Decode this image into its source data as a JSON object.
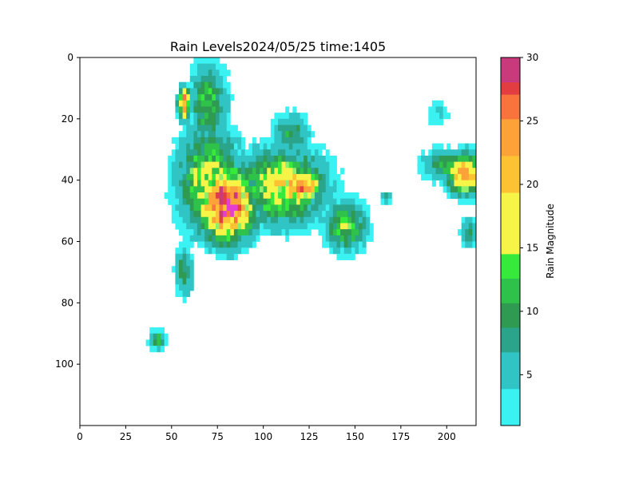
{
  "chart_data": {
    "type": "heatmap",
    "title": "Rain Levels2024/05/25 time:1405",
    "colorbar_label": "Rain Magnitude",
    "x_range": [
      0,
      216
    ],
    "y_range": [
      0,
      120
    ],
    "y_inverted": true,
    "x_ticks": [
      0,
      25,
      50,
      75,
      100,
      125,
      150,
      175,
      200
    ],
    "y_ticks": [
      0,
      20,
      40,
      60,
      80,
      100
    ],
    "x_tick_labels": [
      "0",
      "25",
      "50",
      "75",
      "100",
      "125",
      "150",
      "175",
      "200"
    ],
    "y_tick_labels": [
      "0",
      "20",
      "40",
      "60",
      "80",
      "100"
    ],
    "colorbar_ticks": [
      5,
      10,
      15,
      20,
      25,
      30
    ],
    "colorbar_tick_labels": [
      "5",
      "10",
      "15",
      "20",
      "25",
      "30"
    ],
    "value_range": [
      1,
      30
    ],
    "grid": false,
    "colormap_stops": [
      {
        "v": 1,
        "color": "#3af2f2"
      },
      {
        "v": 4,
        "color": "#30c4c4"
      },
      {
        "v": 7,
        "color": "#2aa48a"
      },
      {
        "v": 9,
        "color": "#2e9a52"
      },
      {
        "v": 11,
        "color": "#2ec24a"
      },
      {
        "v": 13,
        "color": "#36ea3c"
      },
      {
        "v": 14.5,
        "color": "#8cf06a"
      },
      {
        "v": 15,
        "color": "#f6f446"
      },
      {
        "v": 19,
        "color": "#fdc234"
      },
      {
        "v": 22,
        "color": "#fca238"
      },
      {
        "v": 25,
        "color": "#f8743c"
      },
      {
        "v": 27,
        "color": "#e23e42"
      },
      {
        "v": 28.5,
        "color": "#c93a7c"
      },
      {
        "v": 30,
        "color": "#e43ed2"
      }
    ],
    "regions": [
      {
        "name": "main-storm-core",
        "cx": 80,
        "cy": 48,
        "rx": 18,
        "ry": 14,
        "peak": 29
      },
      {
        "name": "storm-west-arm",
        "cx": 70,
        "cy": 40,
        "rx": 20,
        "ry": 20,
        "peak": 16
      },
      {
        "name": "central-band",
        "cx": 110,
        "cy": 42,
        "rx": 28,
        "ry": 14,
        "peak": 18
      },
      {
        "name": "band-core",
        "cx": 120,
        "cy": 42,
        "rx": 14,
        "ry": 7,
        "peak": 24
      },
      {
        "name": "east-extension",
        "cx": 145,
        "cy": 55,
        "rx": 14,
        "ry": 10,
        "peak": 13
      },
      {
        "name": "north-arm",
        "cx": 70,
        "cy": 15,
        "rx": 12,
        "ry": 16,
        "peak": 12
      },
      {
        "name": "north-west-cell",
        "cx": 57,
        "cy": 15,
        "rx": 4,
        "ry": 6,
        "peak": 24
      },
      {
        "name": "north-east-band",
        "cx": 115,
        "cy": 25,
        "rx": 12,
        "ry": 8,
        "peak": 10
      },
      {
        "name": "south-tail",
        "cx": 57,
        "cy": 70,
        "rx": 6,
        "ry": 10,
        "peak": 10
      },
      {
        "name": "south-west-cell",
        "cx": 42,
        "cy": 92,
        "rx": 5,
        "ry": 4,
        "peak": 11
      },
      {
        "name": "right-edge-cell",
        "cx": 210,
        "cy": 38,
        "rx": 12,
        "ry": 8,
        "peak": 22
      },
      {
        "name": "right-edge-band",
        "cx": 198,
        "cy": 35,
        "rx": 14,
        "ry": 6,
        "peak": 11
      },
      {
        "name": "right-lower-cell",
        "cx": 212,
        "cy": 57,
        "rx": 5,
        "ry": 6,
        "peak": 9
      },
      {
        "name": "mid-east-patch",
        "cx": 167,
        "cy": 46,
        "rx": 3,
        "ry": 3,
        "peak": 8
      },
      {
        "name": "right-top-speckles",
        "cx": 195,
        "cy": 18,
        "rx": 8,
        "ry": 6,
        "peak": 5
      }
    ]
  }
}
